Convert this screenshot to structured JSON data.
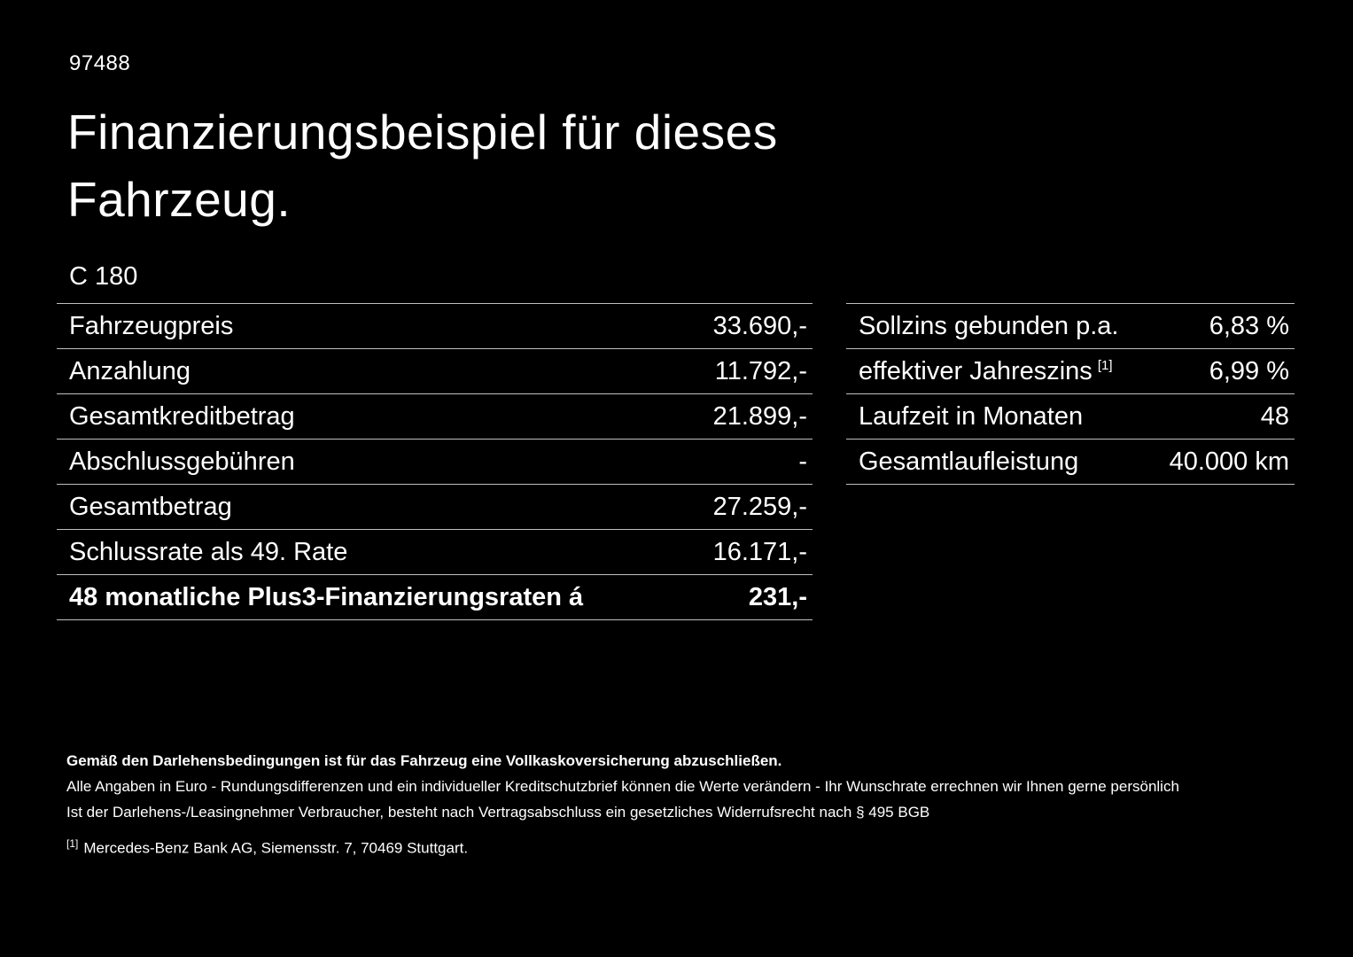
{
  "page": {
    "code": "97488",
    "title": "Finanzierungsbeispiel für dieses\nFahrzeug.",
    "model": "C 180"
  },
  "tables": {
    "left": {
      "rows": [
        {
          "label": "Fahrzeugpreis",
          "value": "33.690,-"
        },
        {
          "label": "Anzahlung",
          "value": "11.792,-"
        },
        {
          "label": "Gesamtkreditbetrag",
          "value": "21.899,-"
        },
        {
          "label": "Abschlussgebühren",
          "value": "-"
        },
        {
          "label": "Gesamtbetrag",
          "value": "27.259,-"
        },
        {
          "label": "Schlussrate als 49. Rate",
          "value": "16.171,-"
        },
        {
          "label": "48 monatliche Plus3-Finanzierungsraten á",
          "value": "231,-"
        }
      ]
    },
    "right": {
      "rows": [
        {
          "label": "Sollzins gebunden p.a.",
          "value": "6,83 %"
        },
        {
          "label": "effektiver Jahreszins",
          "sup": "[1]",
          "value": "6,99 %"
        },
        {
          "label": "Laufzeit in Monaten",
          "value": "48"
        },
        {
          "label": "Gesamtlaufleistung",
          "value": "40.000 km"
        }
      ]
    }
  },
  "footer": {
    "insurance_note": "Gemäß den Darlehensbedingungen ist für das Fahrzeug eine Vollkaskoversicherung abzuschließen.",
    "line1": "Alle Angaben in Euro - Rundungsdifferenzen und ein individueller Kreditschutzbrief können die Werte verändern - Ihr Wunschrate errechnen wir Ihnen gerne persönlich",
    "line2": "Ist der Darlehens-/Leasingnehmer Verbraucher, besteht nach Vertragsabschluss ein gesetzliches Widerrufsrecht nach § 495 BGB",
    "footnote_marker": "[1]",
    "footnote_text": "Mercedes-Benz Bank AG, Siemensstr. 7, 70469 Stuttgart."
  },
  "colors": {
    "background": "#000000",
    "text": "#ffffff",
    "divider": "#bfbfbf"
  }
}
